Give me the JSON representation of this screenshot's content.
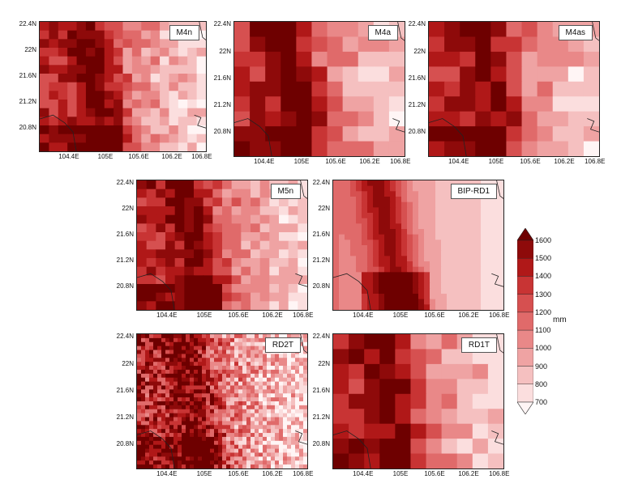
{
  "figure": {
    "unit": "mm",
    "y_ticks": [
      "22.4N",
      "22N",
      "21.6N",
      "21.2N",
      "20.8N"
    ],
    "x_ticks": [
      "104.4E",
      "105E",
      "105.6E",
      "106.2E",
      "106.8E"
    ]
  },
  "panels": [
    {
      "id": "M4n",
      "label": "M4n",
      "style": "coarse",
      "seed": 11
    },
    {
      "id": "M4a",
      "label": "M4a",
      "style": "coarse2",
      "seed": 23
    },
    {
      "id": "M4as",
      "label": "M4as",
      "style": "coarse2",
      "seed": 37
    },
    {
      "id": "M5n",
      "label": "M5n",
      "style": "coarse",
      "seed": 41
    },
    {
      "id": "BIP-RD1",
      "label": "BIP-RD1",
      "style": "smooth",
      "seed": 53
    },
    {
      "id": "RD2T",
      "label": "RD2T",
      "style": "fine",
      "seed": 67
    },
    {
      "id": "RD1T",
      "label": "RD1T",
      "style": "coarse2",
      "seed": 79
    }
  ],
  "colorbar": {
    "levels": [
      "1600",
      "1500",
      "1400",
      "1300",
      "1200",
      "1100",
      "1000",
      "900",
      "800",
      "700"
    ],
    "colors": [
      "#6e0000",
      "#8e0a0a",
      "#b01818",
      "#c83434",
      "#d65050",
      "#e06a6a",
      "#e98888",
      "#efa3a3",
      "#f5c0c0",
      "#fbdede",
      "#fff5f5"
    ]
  }
}
